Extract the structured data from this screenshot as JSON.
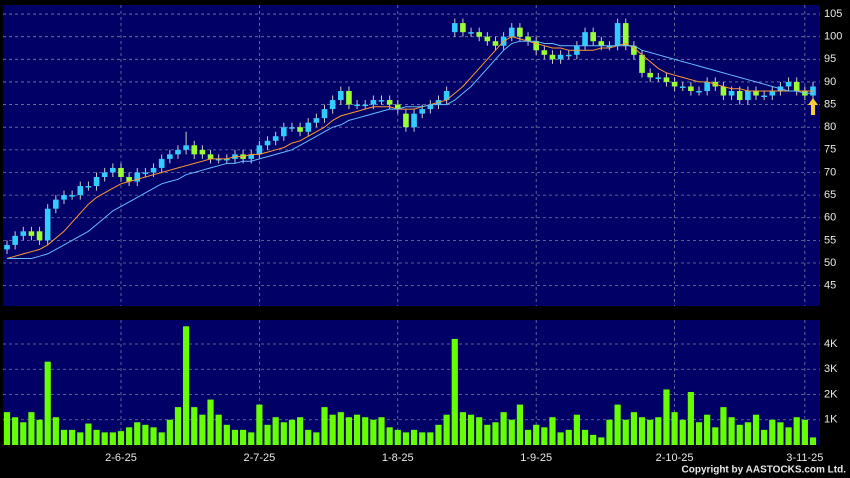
{
  "chart_data": {
    "type": "candlestick",
    "up_color": "#33ccff",
    "down_color": "#99ff33",
    "grid": true,
    "categories": [
      null,
      null,
      null,
      null,
      null,
      null,
      null,
      null,
      null,
      null,
      null,
      null,
      null,
      null,
      "2-6-25",
      null,
      null,
      null,
      null,
      null,
      null,
      null,
      null,
      null,
      null,
      null,
      null,
      null,
      null,
      null,
      null,
      "2-7-25",
      null,
      null,
      null,
      null,
      null,
      null,
      null,
      null,
      null,
      null,
      null,
      null,
      null,
      null,
      null,
      null,
      "1-8-25",
      null,
      null,
      null,
      null,
      null,
      null,
      null,
      null,
      null,
      null,
      null,
      null,
      null,
      null,
      null,
      null,
      "1-9-25",
      null,
      null,
      null,
      null,
      null,
      null,
      null,
      null,
      null,
      null,
      null,
      null,
      null,
      null,
      null,
      null,
      "2-10-25",
      null,
      null,
      null,
      null,
      null,
      null,
      null,
      null,
      null,
      null,
      null,
      null,
      null,
      null,
      null,
      "3-11-25",
      null
    ],
    "open": [
      53,
      54,
      56,
      57,
      57,
      55,
      62,
      64,
      65,
      65,
      67,
      67,
      69,
      70,
      71,
      69,
      68,
      70,
      70,
      71,
      73,
      74,
      75,
      76,
      75,
      74,
      73,
      73,
      73,
      74,
      73,
      74,
      76,
      77,
      78,
      80,
      80,
      79,
      81,
      82,
      84,
      86,
      88,
      85,
      85,
      85,
      86,
      86,
      85,
      83,
      80,
      83,
      84,
      85,
      86,
      101,
      103,
      101,
      101,
      100,
      99,
      98,
      100,
      102,
      100,
      99,
      97,
      96,
      95,
      96,
      96,
      98,
      101,
      99,
      98,
      98,
      103,
      98,
      96,
      92,
      91,
      91,
      90,
      89,
      89,
      88,
      88,
      90,
      89,
      87,
      88,
      86,
      88,
      87,
      87,
      88,
      89,
      90,
      88,
      87
    ],
    "high": [
      55,
      57,
      58,
      58,
      58,
      63,
      65,
      66,
      66,
      68,
      68,
      70,
      71,
      72,
      72,
      70,
      71,
      71,
      72,
      74,
      75,
      76,
      79,
      77,
      76,
      75,
      74,
      74,
      75,
      75,
      75,
      77,
      78,
      79,
      81,
      81,
      81,
      82,
      83,
      85,
      87,
      89,
      89,
      86,
      86,
      87,
      87,
      87,
      86,
      84,
      84,
      85,
      86,
      87,
      89,
      104,
      104,
      102,
      102,
      101,
      100,
      101,
      103,
      103,
      101,
      100,
      98,
      97,
      97,
      97,
      99,
      102,
      102,
      100,
      99,
      104,
      104,
      99,
      97,
      93,
      92,
      92,
      91,
      90,
      90,
      89,
      91,
      91,
      90,
      89,
      89,
      89,
      89,
      88,
      89,
      90,
      91,
      91,
      89,
      90
    ],
    "low": [
      52,
      53,
      55,
      55,
      54,
      54,
      61,
      63,
      64,
      64,
      66,
      66,
      68,
      69,
      68,
      67,
      67,
      69,
      69,
      70,
      72,
      73,
      74,
      73,
      73,
      72,
      72,
      72,
      72,
      72,
      72,
      73,
      75,
      76,
      77,
      79,
      78,
      78,
      80,
      81,
      83,
      85,
      84,
      84,
      84,
      84,
      85,
      84,
      83,
      79,
      79,
      82,
      83,
      84,
      85,
      100,
      100,
      100,
      99,
      98,
      97,
      97,
      99,
      99,
      98,
      96,
      95,
      94,
      94,
      95,
      95,
      97,
      98,
      97,
      97,
      97,
      97,
      95,
      91,
      90,
      90,
      89,
      88,
      88,
      87,
      87,
      87,
      88,
      86,
      86,
      85,
      85,
      86,
      86,
      86,
      87,
      88,
      87,
      86,
      86
    ],
    "close": [
      54,
      56,
      57,
      56,
      55,
      62,
      64,
      65,
      65,
      67,
      67,
      69,
      70,
      71,
      69,
      68,
      70,
      70,
      71,
      73,
      74,
      75,
      76,
      74,
      74,
      73,
      73,
      73,
      74,
      73,
      74,
      76,
      77,
      78,
      80,
      80,
      79,
      81,
      82,
      84,
      86,
      88,
      85,
      85,
      85,
      86,
      86,
      85,
      84,
      80,
      83,
      84,
      85,
      86,
      88,
      103,
      101,
      101,
      100,
      99,
      98,
      100,
      102,
      100,
      99,
      97,
      96,
      95,
      96,
      96,
      98,
      101,
      99,
      98,
      98,
      103,
      98,
      96,
      92,
      91,
      91,
      90,
      89,
      89,
      88,
      88,
      90,
      89,
      87,
      88,
      86,
      88,
      87,
      87,
      88,
      89,
      90,
      88,
      87,
      89
    ],
    "series": [
      {
        "color": "#ff9933",
        "values": [
          51,
          51.5,
          52,
          52.5,
          53,
          54,
          55.5,
          57,
          59,
          61,
          63,
          64.5,
          65.5,
          66.5,
          67.5,
          68,
          68.5,
          69,
          69.5,
          70,
          70.5,
          71,
          71.5,
          72,
          72.5,
          73,
          73,
          73,
          73.5,
          73.5,
          74,
          74,
          74.5,
          75,
          75.5,
          76.5,
          77,
          78,
          79,
          80,
          81.5,
          82.5,
          83,
          83.5,
          84,
          84.5,
          84.5,
          84.5,
          84,
          84,
          84,
          84.5,
          85,
          85.5,
          86,
          87.5,
          89,
          91,
          93,
          95,
          97,
          99,
          100,
          99.5,
          99,
          98.5,
          98,
          97.5,
          97.5,
          97,
          97,
          97,
          97,
          97.5,
          97.5,
          98,
          98.5,
          97.5,
          96,
          94.5,
          93,
          92,
          91.5,
          91,
          90.5,
          90,
          90,
          89.5,
          89,
          88.5,
          88.5,
          88,
          88,
          88,
          88,
          88,
          88,
          88,
          88,
          88
        ]
      },
      {
        "color": "#66bbff",
        "values": [
          51,
          51,
          51,
          51,
          51.5,
          52,
          53,
          54,
          55,
          56,
          57,
          58.5,
          60,
          61.5,
          62.5,
          63.5,
          64.5,
          65.5,
          66.5,
          67.5,
          68,
          68.5,
          69.5,
          70,
          70.5,
          71,
          71.5,
          72,
          72,
          72.5,
          72.5,
          73,
          73.5,
          74,
          74.5,
          75,
          76,
          77,
          78,
          79,
          80,
          80.5,
          81.5,
          82,
          82.5,
          83,
          83.5,
          84,
          84,
          84.5,
          84.5,
          84.5,
          85,
          85,
          85,
          86,
          87.5,
          89,
          91,
          93,
          95,
          97,
          98.5,
          99,
          99,
          99,
          98.5,
          98.5,
          98,
          98,
          98,
          98,
          98,
          98,
          98,
          98,
          98,
          98,
          97,
          96.5,
          96,
          95.5,
          95,
          94.5,
          94,
          93.5,
          93,
          92.5,
          92,
          91.5,
          91,
          90.5,
          90,
          89.5,
          89,
          88.5,
          88,
          88,
          87.5,
          87.5
        ]
      }
    ],
    "ylim": [
      40.5,
      107
    ],
    "yticks": [
      45,
      50,
      55,
      60,
      65,
      70,
      75,
      80,
      85,
      90,
      95,
      100,
      105
    ],
    "volume": {
      "color": "#66ff00",
      "values": [
        1300,
        1100,
        900,
        1300,
        1000,
        3300,
        1100,
        600,
        600,
        500,
        850,
        600,
        500,
        500,
        550,
        700,
        900,
        800,
        700,
        500,
        1000,
        1500,
        4700,
        1500,
        1200,
        1800,
        1200,
        800,
        600,
        600,
        500,
        1600,
        800,
        1100,
        900,
        1000,
        1100,
        600,
        500,
        1500,
        1200,
        1300,
        1100,
        1200,
        1100,
        1000,
        1100,
        700,
        600,
        500,
        600,
        500,
        500,
        800,
        1200,
        4200,
        1300,
        1200,
        1100,
        800,
        900,
        1300,
        1000,
        1600,
        600,
        800,
        700,
        1100,
        500,
        600,
        1200,
        600,
        400,
        300,
        1000,
        1600,
        1000,
        1300,
        1100,
        1000,
        1100,
        2200,
        1300,
        1000,
        2100,
        900,
        1200,
        700,
        1500,
        1100,
        800,
        900,
        1200,
        600,
        1000,
        900,
        700,
        1100,
        1000,
        300
      ],
      "ylim": [
        0,
        4950
      ],
      "yticks": [
        {
          "value": 1000,
          "label": "1K"
        },
        {
          "value": 2000,
          "label": "2K"
        },
        {
          "value": 3000,
          "label": "3K"
        },
        {
          "value": 4000,
          "label": "4K"
        }
      ]
    }
  },
  "footer": {
    "copyright": "Copyright by AASTOCKS.com Ltd."
  }
}
